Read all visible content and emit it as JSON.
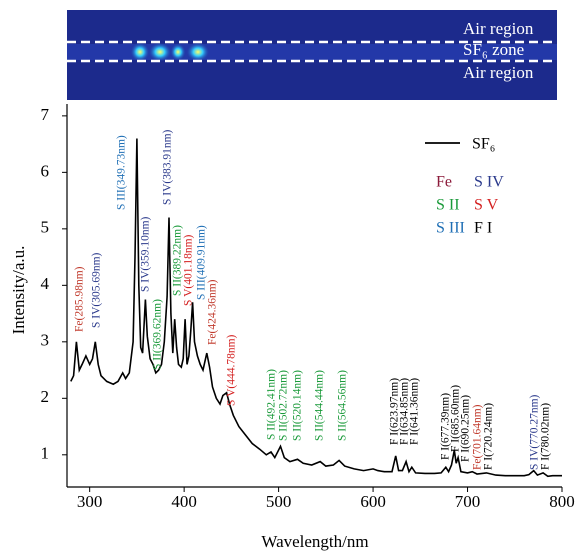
{
  "chart_data": {
    "type": "line",
    "xlabel": "Wavelength/nm",
    "ylabel": "Intensity/a.u.",
    "xlim": [
      276,
      800
    ],
    "ylim": [
      0.43,
      7.21
    ],
    "xticks": [
      300,
      400,
      500,
      600,
      700,
      800
    ],
    "yticks": [
      1,
      2,
      3,
      4,
      5,
      6,
      7
    ],
    "series": [
      {
        "name": "SF₆",
        "color": "#000000",
        "x": [
          280,
          283,
          286,
          289,
          292,
          296,
          300,
          303,
          306,
          309,
          312,
          318,
          325,
          330,
          335,
          338,
          342,
          346,
          348,
          350,
          352,
          354,
          356,
          359,
          361,
          364,
          367,
          370,
          373,
          376,
          379,
          382,
          384,
          386,
          388,
          390,
          392,
          394,
          397,
          399,
          401,
          403,
          405,
          407,
          409,
          411,
          414,
          417,
          420,
          424,
          427,
          430,
          434,
          438,
          441,
          445,
          448,
          452,
          458,
          465,
          472,
          480,
          487,
          492,
          496,
          502,
          506,
          512,
          520,
          526,
          535,
          544,
          550,
          558,
          564,
          570,
          580,
          590,
          600,
          605,
          612,
          620,
          624,
          627,
          631,
          635,
          638,
          641,
          645,
          655,
          665,
          672,
          677,
          680,
          683,
          686,
          688,
          690,
          693,
          700,
          705,
          710,
          720,
          730,
          740,
          750,
          760,
          765,
          770,
          774,
          780,
          785,
          790,
          800
        ],
        "values": [
          2.3,
          2.4,
          3.0,
          2.5,
          2.6,
          2.75,
          2.6,
          2.7,
          3.0,
          2.6,
          2.4,
          2.3,
          2.25,
          2.3,
          2.45,
          2.35,
          2.45,
          3.0,
          4.5,
          6.6,
          4.0,
          2.9,
          2.8,
          3.75,
          3.1,
          2.7,
          2.6,
          2.45,
          2.5,
          2.6,
          3.0,
          3.8,
          5.2,
          3.5,
          2.8,
          3.4,
          2.9,
          2.6,
          2.55,
          2.7,
          3.4,
          2.6,
          2.75,
          3.2,
          3.7,
          3.0,
          2.75,
          2.6,
          2.5,
          2.8,
          2.55,
          2.2,
          2.0,
          1.9,
          2.05,
          2.1,
          1.9,
          1.7,
          1.5,
          1.35,
          1.2,
          1.1,
          1.0,
          1.05,
          0.95,
          1.15,
          0.95,
          0.88,
          0.92,
          0.85,
          0.82,
          0.88,
          0.8,
          0.82,
          0.9,
          0.8,
          0.75,
          0.72,
          0.75,
          0.72,
          0.7,
          0.7,
          0.98,
          0.72,
          0.72,
          0.88,
          0.7,
          0.78,
          0.68,
          0.67,
          0.67,
          0.68,
          0.78,
          0.7,
          0.82,
          1.08,
          0.85,
          0.95,
          0.7,
          0.68,
          0.7,
          0.66,
          0.68,
          0.64,
          0.63,
          0.63,
          0.63,
          0.65,
          0.72,
          0.64,
          0.68,
          0.62,
          0.63,
          0.63
        ]
      }
    ],
    "species_legend": [
      {
        "name": "Fe",
        "color": "#8b1a3a"
      },
      {
        "name": "S IV",
        "color": "#2b3a8c"
      },
      {
        "name": "S II",
        "color": "#1a9a3a"
      },
      {
        "name": "S V",
        "color": "#d42020"
      },
      {
        "name": "S III",
        "color": "#1f6fb5"
      },
      {
        "name": "F I",
        "color": "#000000"
      }
    ],
    "annotations": [
      {
        "text": "Fe(285.98nm)",
        "color": "#c0392b"
      },
      {
        "text": "S IV(305.69nm)",
        "color": "#2b3a8c"
      },
      {
        "text": "S III(349.73nm)",
        "color": "#1f6fb5"
      },
      {
        "text": "S IV(359.10nm)",
        "color": "#2b3a8c"
      },
      {
        "text": "S II(369.62nm)",
        "color": "#1a9a3a"
      },
      {
        "text": "S IV(383.91nm)",
        "color": "#2b3a8c"
      },
      {
        "text": "S II(389.22nm)",
        "color": "#1a9a3a"
      },
      {
        "text": "S V(401.18nm)",
        "color": "#d42020"
      },
      {
        "text": "S III(409.91nm)",
        "color": "#1f6fb5"
      },
      {
        "text": "Fe(424.36nm)",
        "color": "#c0392b"
      },
      {
        "text": "S V(444.78nm)",
        "color": "#d42020"
      },
      {
        "text": "S II(492.41nm)",
        "color": "#1a9a3a"
      },
      {
        "text": "S II(502.72nm)",
        "color": "#1a9a3a"
      },
      {
        "text": "S II(520.14nm)",
        "color": "#1a9a3a"
      },
      {
        "text": "S II(544.44nm)",
        "color": "#1a9a3a"
      },
      {
        "text": "S II(564.56nm)",
        "color": "#1a9a3a"
      },
      {
        "text": "F I(623.97nm)",
        "color": "#000000"
      },
      {
        "text": "F I(634.85nm)",
        "color": "#000000"
      },
      {
        "text": "F I(641.36nm)",
        "color": "#000000"
      },
      {
        "text": "F I(677.39nm)",
        "color": "#000000"
      },
      {
        "text": "F I(685.60nm)",
        "color": "#000000"
      },
      {
        "text": "F I(690.25nm)",
        "color": "#000000"
      },
      {
        "text": "Fe(701.64nm)",
        "color": "#c0392b"
      },
      {
        "text": "F I(720.24nm)",
        "color": "#000000"
      },
      {
        "text": "S IV(770.27nm)",
        "color": "#2b3a8c"
      },
      {
        "text": "F I(780.02nm)",
        "color": "#000000"
      }
    ],
    "inset": {
      "labels": [
        "Air region",
        "SF₆ zone",
        "Air region"
      ]
    }
  }
}
